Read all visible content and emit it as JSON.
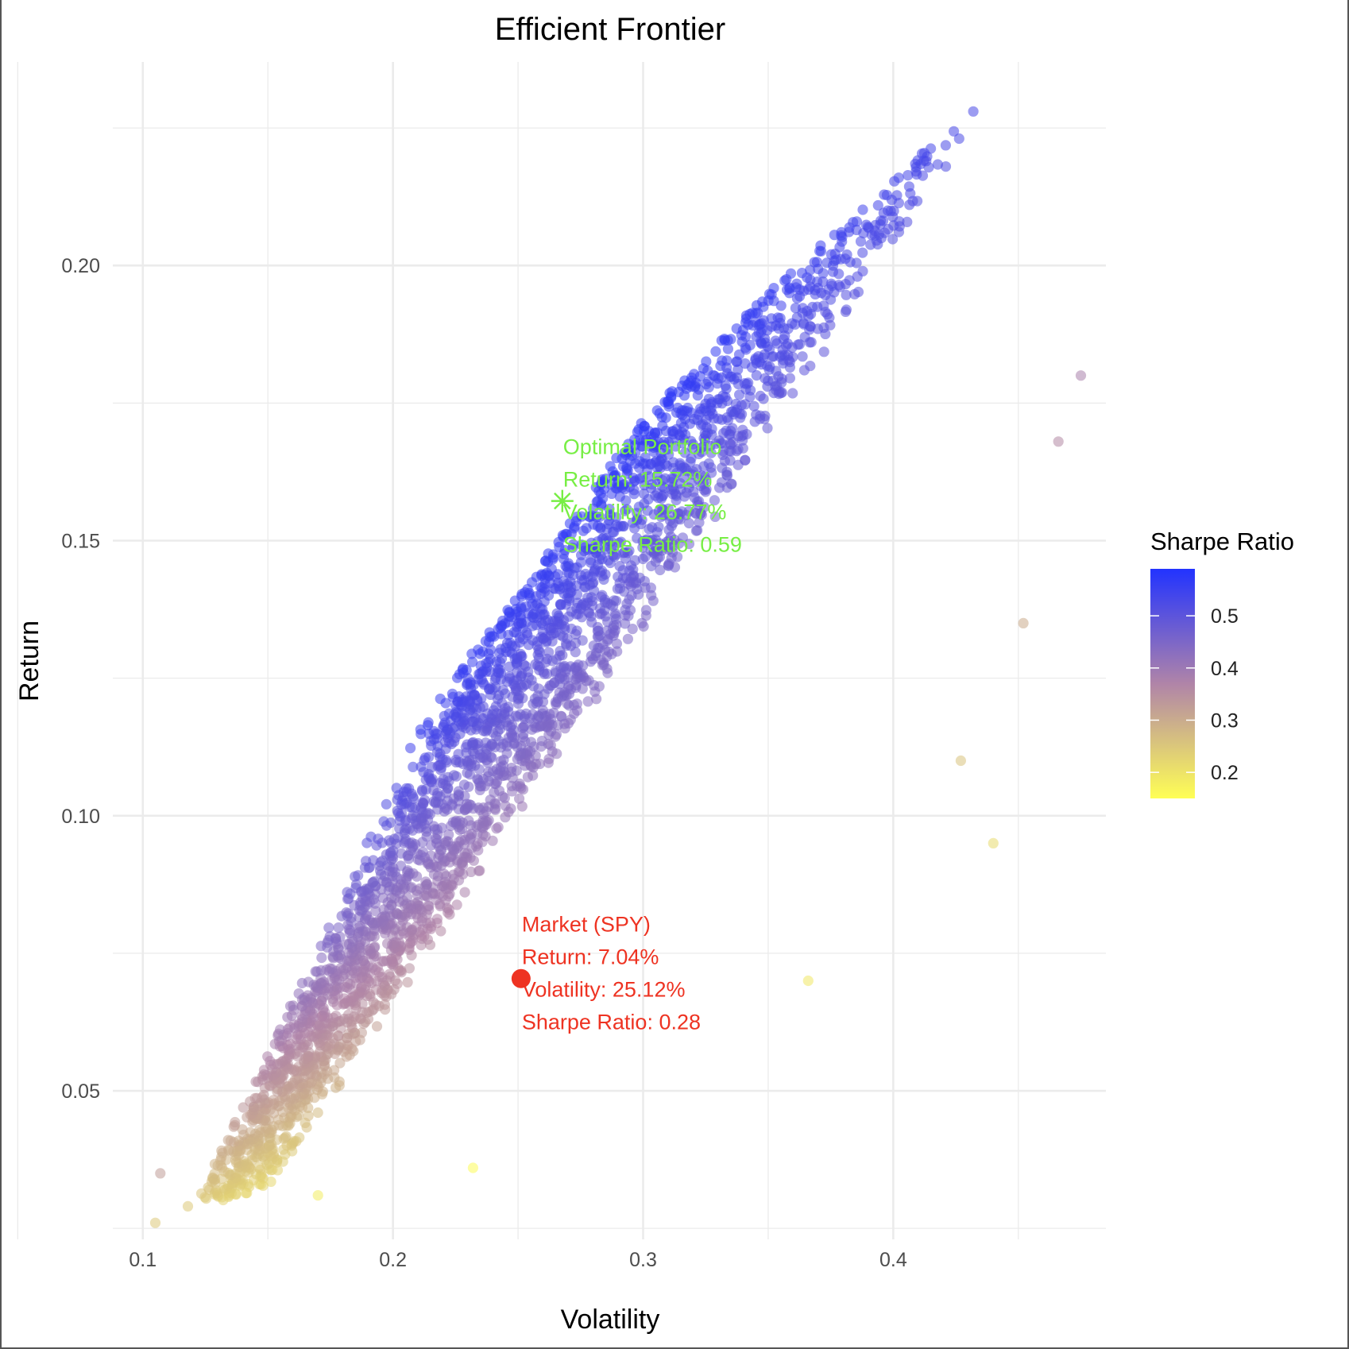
{
  "chart_data": {
    "type": "scatter",
    "title": "Efficient Frontier",
    "xlabel": "Volatility",
    "ylabel": "Return",
    "xlim": [
      0.088,
      0.485
    ],
    "ylim": [
      0.023,
      0.237
    ],
    "x_ticks": [
      0.1,
      0.2,
      0.3,
      0.4
    ],
    "x_tick_labels": [
      "0.1",
      "0.2",
      "0.3",
      "0.4"
    ],
    "y_ticks": [
      0.05,
      0.1,
      0.15,
      0.2
    ],
    "y_tick_labels": [
      "0.05",
      "0.10",
      "0.15",
      "0.20"
    ],
    "grid": true,
    "color_scale": {
      "title": "Sharpe Ratio",
      "min": 0.15,
      "max": 0.59,
      "breaks": [
        0.2,
        0.3,
        0.4,
        0.5
      ],
      "break_labels": [
        "0.2",
        "0.3",
        "0.4",
        "0.5"
      ],
      "low_color": "#ffff55",
      "mid_color": "#b084a8",
      "high_color": "#2233ff"
    },
    "risk_free_rate": 0.0,
    "simulated_portfolios": {
      "cloud_lower_line": [
        [
          0.105,
          0.026
        ],
        [
          0.2,
          0.04
        ],
        [
          0.3,
          0.075
        ],
        [
          0.4,
          0.13
        ]
      ],
      "cloud_upper_line": [
        [
          0.16,
          0.08
        ],
        [
          0.2,
          0.112
        ],
        [
          0.25,
          0.14
        ],
        [
          0.3,
          0.172
        ],
        [
          0.35,
          0.195
        ],
        [
          0.43,
          0.228
        ]
      ],
      "outliers": [
        [
          0.107,
          0.035
        ],
        [
          0.105,
          0.026
        ],
        [
          0.118,
          0.029
        ],
        [
          0.13,
          0.031
        ],
        [
          0.17,
          0.031
        ],
        [
          0.232,
          0.036
        ],
        [
          0.44,
          0.095
        ],
        [
          0.427,
          0.11
        ],
        [
          0.452,
          0.135
        ],
        [
          0.475,
          0.18
        ],
        [
          0.466,
          0.168
        ],
        [
          0.366,
          0.07
        ],
        [
          0.432,
          0.228
        ],
        [
          0.421,
          0.218
        ]
      ]
    },
    "annotations": [
      {
        "name": "Optimal Portfolio",
        "x": 0.2677,
        "y": 0.1572,
        "marker": "asterisk",
        "color": "#77ee44",
        "lines": [
          "Optimal Portfolio",
          "Return: 15.72%",
          "Volatility: 26.77%",
          "Sharpe Ratio: 0.59"
        ]
      },
      {
        "name": "Market (SPY)",
        "x": 0.2512,
        "y": 0.0704,
        "marker": "circle",
        "color": "#ee3322",
        "lines": [
          "Market (SPY)",
          "Return: 7.04%",
          "Volatility: 25.12%",
          "Sharpe Ratio: 0.28"
        ]
      }
    ]
  }
}
